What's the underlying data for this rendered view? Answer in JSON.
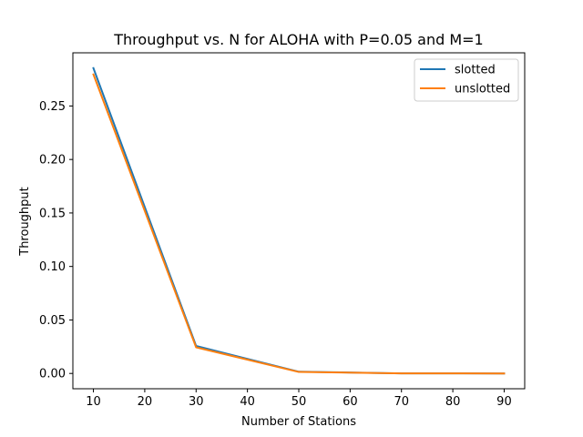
{
  "chart_data": {
    "type": "line",
    "title": "Throughput vs. N for ALOHA with P=0.05 and M=1",
    "xlabel": "Number of Stations",
    "ylabel": "Throughput",
    "x": [
      10,
      30,
      50,
      70,
      90
    ],
    "series": [
      {
        "name": "slotted",
        "color": "#1f77b4",
        "values": [
          0.2854,
          0.0257,
          0.0016,
          0.0001,
          0.0
        ]
      },
      {
        "name": "unslotted",
        "color": "#ff7f0e",
        "values": [
          0.2795,
          0.0244,
          0.0014,
          0.0001,
          0.0
        ]
      }
    ],
    "xlim": [
      6,
      94
    ],
    "ylim": [
      -0.0143,
      0.2997
    ],
    "xticks": [
      10,
      20,
      30,
      40,
      50,
      60,
      70,
      80,
      90
    ],
    "yticks": [
      0.0,
      0.05,
      0.1,
      0.15,
      0.2,
      0.25
    ],
    "xtick_labels": [
      "10",
      "20",
      "30",
      "40",
      "50",
      "60",
      "70",
      "80",
      "90"
    ],
    "ytick_labels": [
      "0.00",
      "0.05",
      "0.10",
      "0.15",
      "0.20",
      "0.25"
    ],
    "legend_position": "top-right",
    "grid": false
  }
}
